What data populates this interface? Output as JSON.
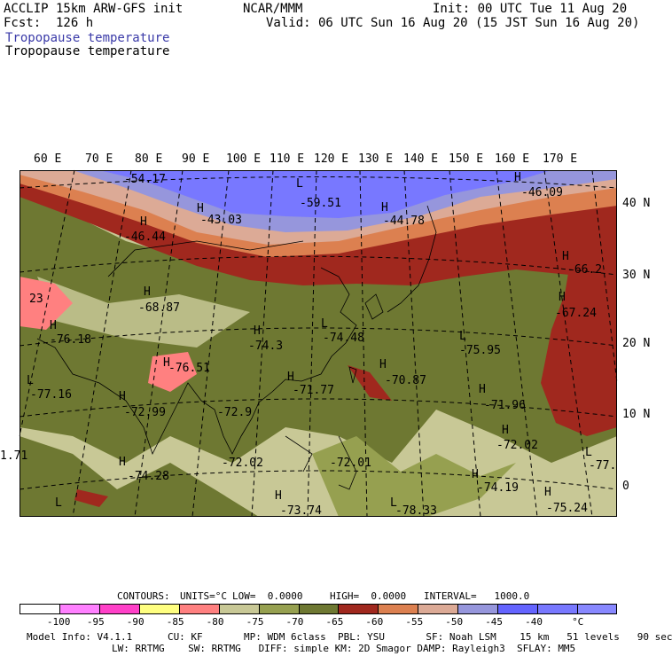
{
  "header": {
    "model": "ACCLIP 15km ARW-GFS init",
    "org": "NCAR/MMM",
    "init": "Init: 00 UTC Tue 11 Aug 20",
    "fcst": "Fcst:  126 h",
    "valid": "Valid: 06 UTC Sun 16 Aug 20 (15 JST Sun 16 Aug 20)",
    "field_title_1": "Tropopause temperature",
    "field_title_2": "Tropopause temperature"
  },
  "lon_labels": [
    "60 E",
    "70 E",
    "80 E",
    "90 E",
    "100 E",
    "110 E",
    "120 E",
    "130 E",
    "140 E",
    "150 E",
    "160 E",
    "170 E"
  ],
  "lat_labels": [
    "40 N",
    "30 N",
    "20 N",
    "10 N",
    "0"
  ],
  "map_labels": [
    {
      "t": "-54.17"
    },
    {
      "t": "L"
    },
    {
      "t": "-59.51"
    },
    {
      "t": "H"
    },
    {
      "t": "-46.09"
    },
    {
      "t": "H"
    },
    {
      "t": "-43.03"
    },
    {
      "t": "H"
    },
    {
      "t": "-44.78"
    },
    {
      "t": "H"
    },
    {
      "t": "-46.44"
    },
    {
      "t": "H"
    },
    {
      "t": "-66.2"
    },
    {
      "t": "H"
    },
    {
      "t": "-67.24"
    },
    {
      "t": "23"
    },
    {
      "t": "H"
    },
    {
      "t": "-68.87"
    },
    {
      "t": "H"
    },
    {
      "t": "-76.18"
    },
    {
      "t": "H"
    },
    {
      "t": "-74.3"
    },
    {
      "t": "L"
    },
    {
      "t": "-74.48"
    },
    {
      "t": "L"
    },
    {
      "t": "-75.95"
    },
    {
      "t": "H"
    },
    {
      "t": "-76.51"
    },
    {
      "t": "L"
    },
    {
      "t": "-77.16"
    },
    {
      "t": "H"
    },
    {
      "t": "-71.77"
    },
    {
      "t": "H"
    },
    {
      "t": "-70.87"
    },
    {
      "t": "H"
    },
    {
      "t": "-71.96"
    },
    {
      "t": "H"
    },
    {
      "t": "-72.99"
    },
    {
      "t": "-72.9"
    },
    {
      "t": "H"
    },
    {
      "t": "-72.02"
    },
    {
      "t": "1.71"
    },
    {
      "t": "-72.02"
    },
    {
      "t": "-72.01"
    },
    {
      "t": "L"
    },
    {
      "t": "-77."
    },
    {
      "t": "H"
    },
    {
      "t": "-74.28"
    },
    {
      "t": "H"
    },
    {
      "t": "-74.19"
    },
    {
      "t": "H"
    },
    {
      "t": "-75.24"
    },
    {
      "t": "H"
    },
    {
      "t": "-73.74"
    },
    {
      "t": "L"
    },
    {
      "t": "-78.33"
    },
    {
      "t": "L"
    }
  ],
  "contour_info": {
    "contours": "CONTOURS:",
    "units": "UNITS=°C",
    "low": "LOW=  0.0000",
    "high": "HIGH=  0.0000",
    "interval": "INTERVAL=   1000.0"
  },
  "colorbar": {
    "colors": [
      "#ffffff",
      "#ff80ff",
      "#ff40c8",
      "#ffff80",
      "#ff8080",
      "#c8c896",
      "#96a050",
      "#6e7832",
      "#a0281e",
      "#dc8050",
      "#dcaa96",
      "#9696dc",
      "#6464ff",
      "#7878ff",
      "#8888ff"
    ],
    "labels": [
      "-100",
      "-95",
      "-90",
      "-85",
      "-80",
      "-75",
      "-70",
      "-65",
      "-60",
      "-55",
      "-50",
      "-45",
      "-40",
      "°C"
    ]
  },
  "footer": {
    "line1": "Model Info: V4.1.1      CU: KF       MP: WDM 6class  PBL: YSU       SF: Noah LSM    15 km   51 levels   90 sec",
    "line2": "LW: RRTMG    SW: RRTMG   DIFF: simple KM: 2D Smagor DAMP: Rayleigh3  SFLAY: MM5"
  },
  "colors": {
    "cold_blue": "#7878ff",
    "light_blue": "#9696dc",
    "pink": "#dcaa96",
    "orange": "#dc8050",
    "red": "#a0281e",
    "olive": "#6e7832",
    "olive_mid": "#96a050",
    "khaki": "#c8c896",
    "salmon": "#ff8080"
  }
}
